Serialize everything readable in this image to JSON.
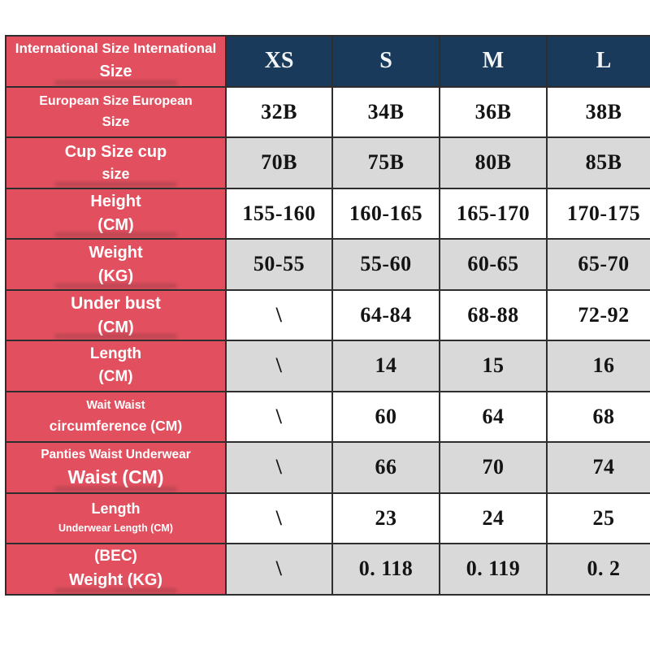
{
  "colors": {
    "label_pink": "#e2505f",
    "header_navy": "#1a3a5b",
    "row_gray": "#d9d9d9",
    "row_white": "#ffffff",
    "border_dark": "#2e2e2e",
    "label_text": "#ffffff",
    "value_text": "#141414"
  },
  "table": {
    "header": {
      "label_line1": "International Size International",
      "label_line2": "Size",
      "sizes": [
        "XS",
        "S",
        "M",
        "L"
      ]
    },
    "rows": [
      {
        "label_line1": "European Size European",
        "label_line2": "Size",
        "values": [
          "32B",
          "34B",
          "36B",
          "38B"
        ]
      },
      {
        "label_line1": "Cup Size cup",
        "label_line2": "size",
        "values": [
          "70B",
          "75B",
          "80B",
          "85B"
        ]
      },
      {
        "label_line1": "Height",
        "label_line2": "(CM)",
        "values": [
          "155-160",
          "160-165",
          "165-170",
          "170-175"
        ]
      },
      {
        "label_line1": "Weight",
        "label_line2": "(KG)",
        "values": [
          "50-55",
          "55-60",
          "60-65",
          "65-70"
        ]
      },
      {
        "label_line1": "Under bust",
        "label_line2": "(CM)",
        "values": [
          "\\",
          "64-84",
          "68-88",
          "72-92"
        ]
      },
      {
        "label_line1": "Length",
        "label_line2": "(CM)",
        "values": [
          "\\",
          "14",
          "15",
          "16"
        ]
      },
      {
        "label_line1": "Wait Waist",
        "label_line2": "circumference (CM)",
        "values": [
          "\\",
          "60",
          "64",
          "68"
        ]
      },
      {
        "label_line1": "Panties Waist Underwear",
        "label_line2": "Waist (CM)",
        "values": [
          "\\",
          "66",
          "70",
          "74"
        ]
      },
      {
        "label_line1": "Length",
        "label_line2": "Underwear Length (CM)",
        "values": [
          "\\",
          "23",
          "24",
          "25"
        ]
      },
      {
        "label_line1": "(BEC)",
        "label_line2": "Weight (KG)",
        "values": [
          "\\",
          "0. 118",
          "0. 119",
          "0. 2"
        ]
      }
    ]
  }
}
